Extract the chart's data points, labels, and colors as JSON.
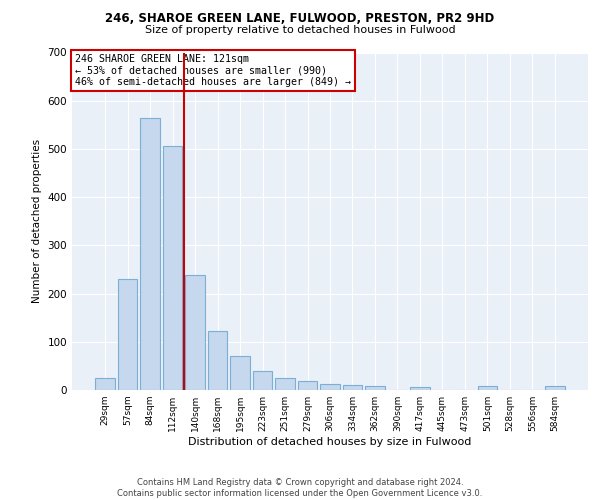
{
  "title1": "246, SHAROE GREEN LANE, FULWOOD, PRESTON, PR2 9HD",
  "title2": "Size of property relative to detached houses in Fulwood",
  "xlabel": "Distribution of detached houses by size in Fulwood",
  "ylabel": "Number of detached properties",
  "categories": [
    "29sqm",
    "57sqm",
    "84sqm",
    "112sqm",
    "140sqm",
    "168sqm",
    "195sqm",
    "223sqm",
    "251sqm",
    "279sqm",
    "306sqm",
    "334sqm",
    "362sqm",
    "390sqm",
    "417sqm",
    "445sqm",
    "473sqm",
    "501sqm",
    "528sqm",
    "556sqm",
    "584sqm"
  ],
  "values": [
    25,
    230,
    565,
    507,
    238,
    122,
    70,
    40,
    25,
    18,
    13,
    10,
    8,
    0,
    7,
    0,
    0,
    8,
    0,
    0,
    8
  ],
  "bar_color": "#c5d8ed",
  "bar_edge_color": "#7bafd4",
  "vline_x": 3.5,
  "vline_color": "#cc0000",
  "annotation_text": "246 SHAROE GREEN LANE: 121sqm\n← 53% of detached houses are smaller (990)\n46% of semi-detached houses are larger (849) →",
  "annotation_box_color": "#ffffff",
  "annotation_box_edge": "#cc0000",
  "ylim": [
    0,
    700
  ],
  "yticks": [
    0,
    100,
    200,
    300,
    400,
    500,
    600,
    700
  ],
  "background_color": "#eaf0f8",
  "footnote": "Contains HM Land Registry data © Crown copyright and database right 2024.\nContains public sector information licensed under the Open Government Licence v3.0."
}
